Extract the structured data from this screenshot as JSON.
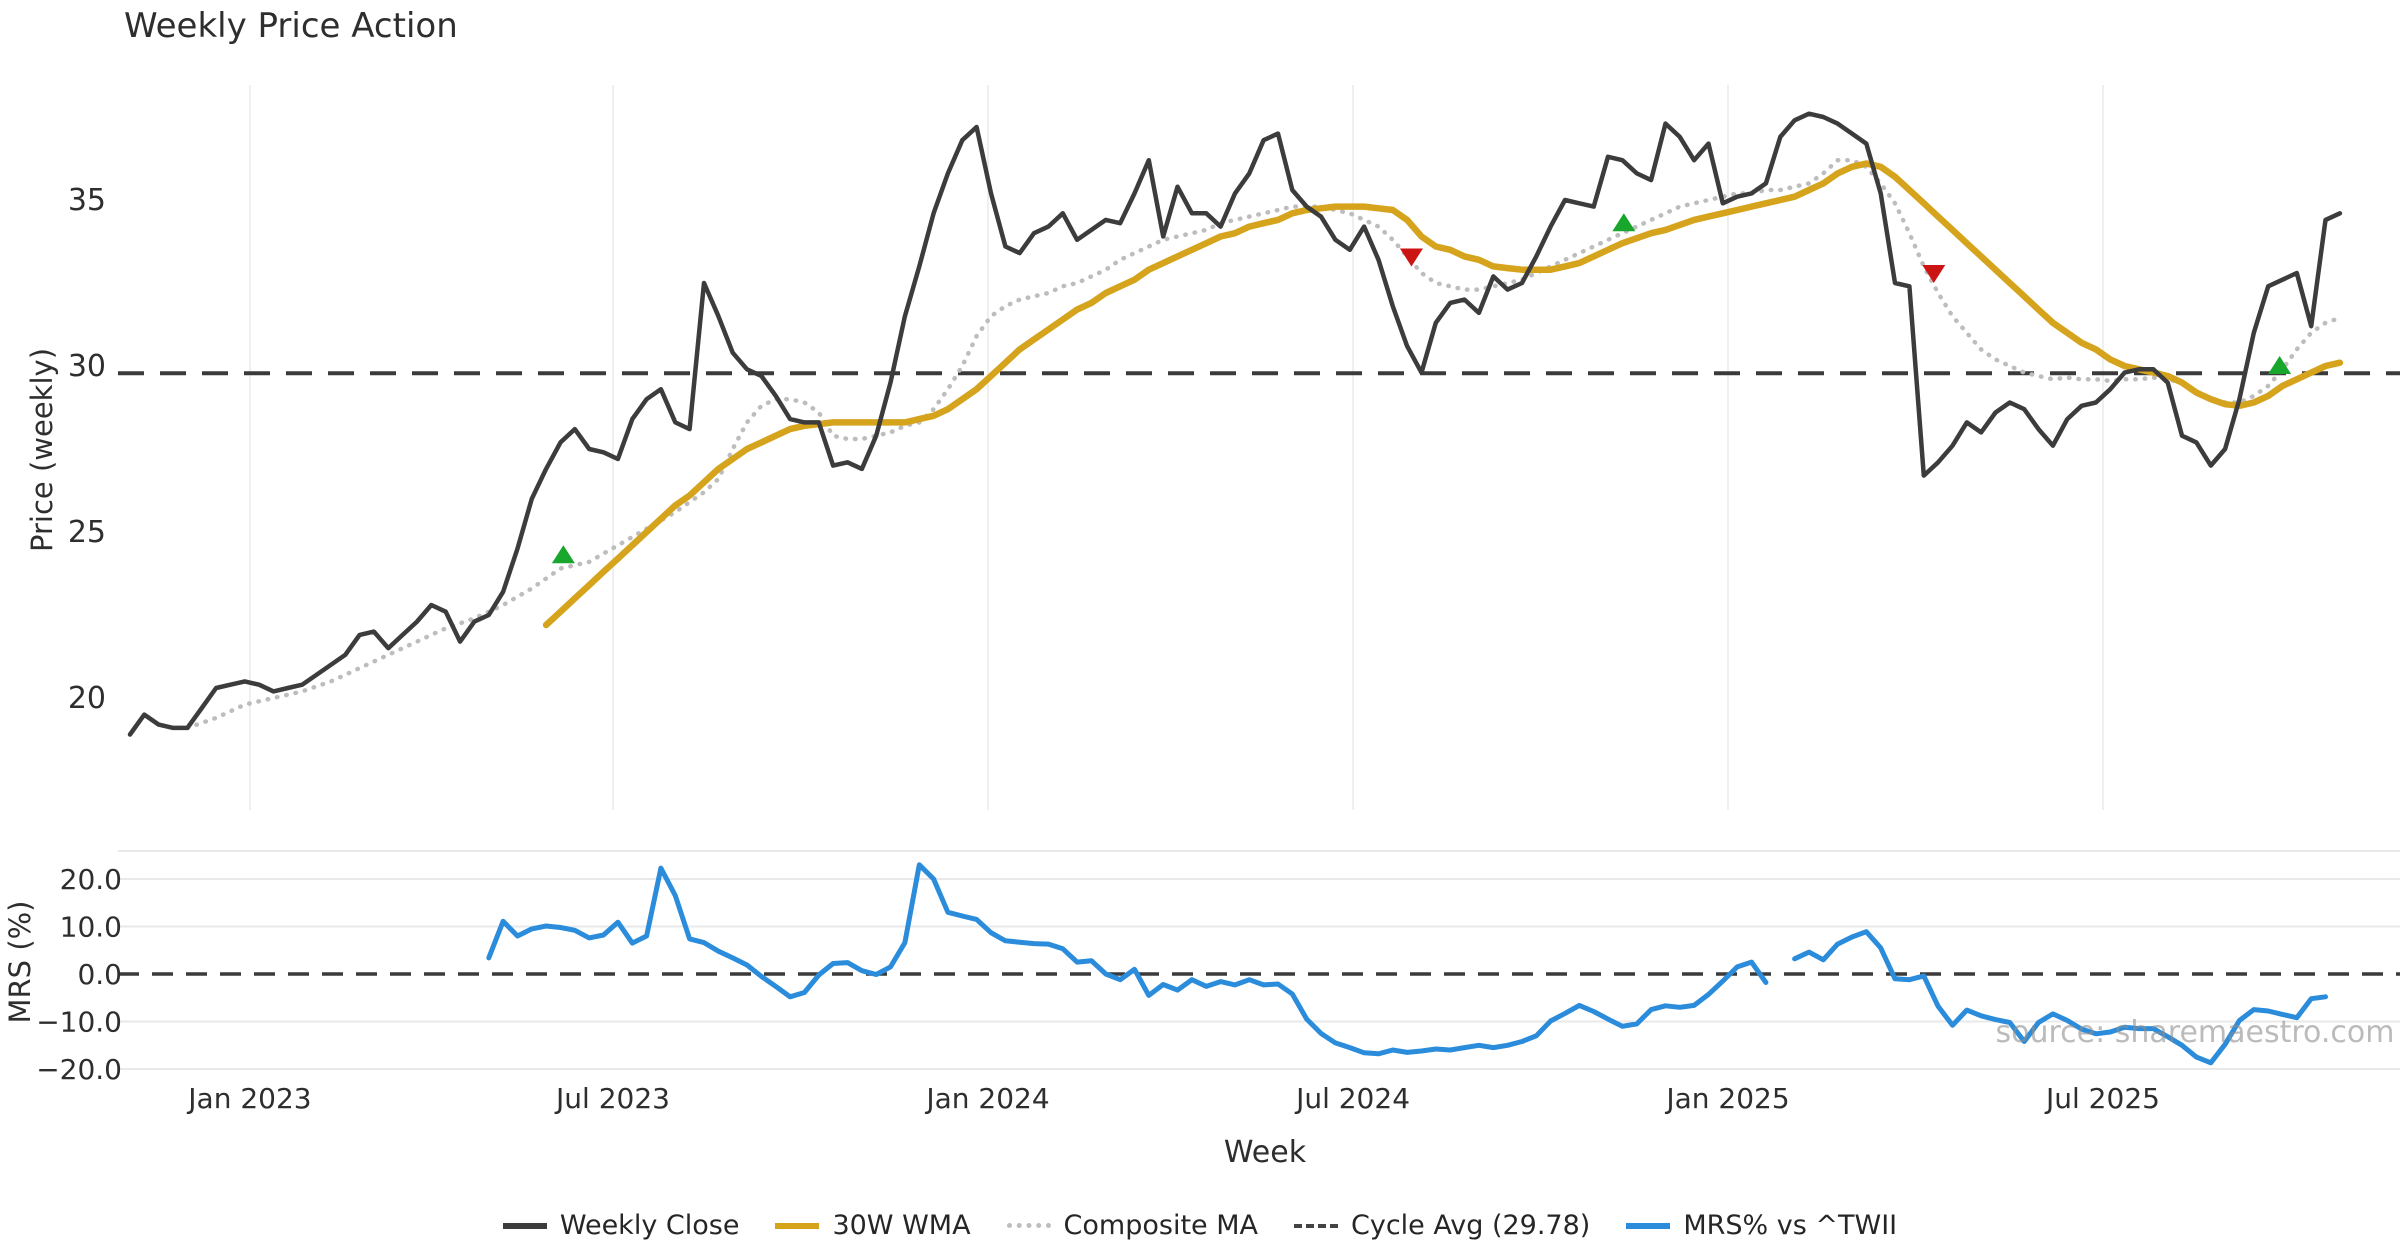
{
  "title": "Weekly Price Action",
  "watermark": "source: sharemaestro.com",
  "legend": [
    {
      "label": "Weekly Close",
      "color": "#3c3c3c",
      "style": "solid"
    },
    {
      "label": "30W WMA",
      "color": "#d5a41c",
      "style": "solid"
    },
    {
      "label": "Composite MA",
      "color": "#bdbdbd",
      "style": "dotted"
    },
    {
      "label": "Cycle Avg (29.78)",
      "color": "#444444",
      "style": "dashed"
    },
    {
      "label": "MRS% vs ^TWII",
      "color": "#2a8cdb",
      "style": "solid"
    }
  ],
  "chart_data": {
    "type": "line",
    "title": "Weekly Price Action",
    "xlabel": "Week",
    "x_unit": "weeks since 2022-11-05",
    "x_ticks": [
      {
        "week": 8.36,
        "label": "Jan 2023"
      },
      {
        "week": 33.66,
        "label": "Jul 2023"
      },
      {
        "week": 59.79,
        "label": "Jan 2024"
      },
      {
        "week": 85.23,
        "label": "Jul 2024"
      },
      {
        "week": 111.36,
        "label": "Jan 2025"
      },
      {
        "week": 137.49,
        "label": "Jul 2025"
      }
    ],
    "panels": [
      {
        "name": "price",
        "ylabel": "Price (weekly)",
        "ylim": [
          16.6,
          38.5
        ],
        "y_ticks": [
          {
            "value": 35,
            "label": "35"
          },
          {
            "value": 30,
            "label": "30"
          },
          {
            "value": 25,
            "label": "25"
          },
          {
            "value": 20,
            "label": "20"
          }
        ],
        "cycle_avg": 29.78,
        "series": [
          {
            "name": "Weekly Close",
            "color": "#3c3c3c",
            "style": "solid",
            "width": 4.5,
            "start_week": 0,
            "values": [
              18.9,
              19.5,
              19.2,
              19.1,
              19.1,
              19.7,
              20.3,
              20.4,
              20.5,
              20.4,
              20.2,
              20.3,
              20.4,
              20.7,
              21.0,
              21.3,
              21.9,
              22.0,
              21.5,
              21.9,
              22.3,
              22.8,
              22.6,
              21.7,
              22.3,
              22.5,
              23.2,
              24.5,
              26.0,
              26.9,
              27.7,
              28.1,
              27.5,
              27.4,
              27.2,
              28.4,
              29.0,
              29.3,
              28.3,
              28.1,
              32.5,
              31.5,
              30.4,
              29.9,
              29.7,
              29.1,
              28.4,
              28.3,
              28.3,
              27.0,
              27.1,
              26.9,
              27.9,
              29.5,
              31.5,
              33.0,
              34.6,
              35.8,
              36.8,
              37.2,
              35.2,
              33.6,
              33.4,
              34.0,
              34.2,
              34.6,
              33.8,
              34.1,
              34.4,
              34.3,
              35.2,
              36.2,
              33.9,
              35.4,
              34.6,
              34.6,
              34.2,
              35.2,
              35.8,
              36.8,
              37.0,
              35.3,
              34.8,
              34.5,
              33.8,
              33.5,
              34.2,
              33.2,
              31.8,
              30.6,
              29.8,
              31.3,
              31.9,
              32.0,
              31.6,
              32.7,
              32.3,
              32.5,
              33.3,
              34.2,
              35.0,
              34.9,
              34.8,
              36.3,
              36.2,
              35.8,
              35.6,
              37.3,
              36.9,
              36.2,
              36.7,
              34.9,
              35.1,
              35.2,
              35.5,
              36.9,
              37.4,
              37.6,
              37.5,
              37.3,
              37.0,
              36.7,
              35.2,
              32.5,
              32.4,
              26.7,
              27.1,
              27.6,
              28.3,
              28.0,
              28.6,
              28.9,
              28.7,
              28.1,
              27.6,
              28.4,
              28.8,
              28.9,
              29.3,
              29.8,
              29.9,
              29.9,
              29.5,
              27.9,
              27.7,
              27.0,
              27.5,
              29.0,
              31.0,
              32.4,
              32.6,
              32.8,
              31.2,
              34.4,
              34.6
            ]
          },
          {
            "name": "30W WMA",
            "color": "#d5a41c",
            "style": "solid",
            "width": 6.5,
            "start_week": 29,
            "values": [
              22.2,
              22.6,
              23.0,
              23.4,
              23.8,
              24.2,
              24.6,
              25.0,
              25.4,
              25.8,
              26.1,
              26.5,
              26.9,
              27.2,
              27.5,
              27.7,
              27.9,
              28.1,
              28.2,
              28.25,
              28.3,
              28.3,
              28.3,
              28.3,
              28.3,
              28.3,
              28.4,
              28.5,
              28.7,
              29.0,
              29.3,
              29.7,
              30.1,
              30.5,
              30.8,
              31.1,
              31.4,
              31.7,
              31.9,
              32.2,
              32.4,
              32.6,
              32.9,
              33.1,
              33.3,
              33.5,
              33.7,
              33.9,
              34.0,
              34.2,
              34.3,
              34.4,
              34.6,
              34.7,
              34.75,
              34.8,
              34.8,
              34.8,
              34.75,
              34.7,
              34.4,
              33.9,
              33.6,
              33.5,
              33.3,
              33.2,
              33.0,
              32.95,
              32.9,
              32.9,
              32.9,
              33.0,
              33.1,
              33.3,
              33.5,
              33.7,
              33.85,
              34.0,
              34.1,
              34.25,
              34.4,
              34.5,
              34.6,
              34.7,
              34.8,
              34.9,
              35.0,
              35.1,
              35.3,
              35.5,
              35.8,
              36.0,
              36.1,
              36.0,
              35.7,
              35.3,
              34.9,
              34.5,
              34.1,
              33.7,
              33.3,
              32.9,
              32.5,
              32.1,
              31.7,
              31.3,
              31.0,
              30.7,
              30.5,
              30.2,
              30.0,
              29.9,
              29.8,
              29.7,
              29.5,
              29.2,
              29.0,
              28.85,
              28.8,
              28.9,
              29.1,
              29.4,
              29.6,
              29.8,
              30.0,
              30.1
            ]
          },
          {
            "name": "Composite MA",
            "color": "#bdbdbd",
            "style": "dotted",
            "width": 4.5,
            "start_week": 4,
            "values": [
              19.1,
              19.25,
              19.4,
              19.6,
              19.8,
              19.9,
              20.0,
              20.1,
              20.2,
              20.35,
              20.5,
              20.7,
              20.9,
              21.1,
              21.3,
              21.5,
              21.7,
              21.9,
              22.1,
              22.25,
              22.4,
              22.6,
              22.8,
              23.05,
              23.3,
              23.6,
              23.9,
              24.0,
              24.1,
              24.35,
              24.6,
              24.85,
              25.1,
              25.35,
              25.6,
              25.9,
              26.2,
              26.6,
              27.5,
              28.3,
              28.8,
              29.0,
              29.0,
              28.9,
              28.6,
              27.9,
              27.8,
              27.8,
              27.9,
              28.0,
              28.2,
              28.3,
              28.7,
              29.3,
              30.0,
              30.9,
              31.5,
              31.8,
              32.0,
              32.1,
              32.2,
              32.4,
              32.5,
              32.7,
              32.9,
              33.2,
              33.4,
              33.6,
              33.8,
              33.9,
              34.0,
              34.1,
              34.3,
              34.4,
              34.5,
              34.6,
              34.7,
              34.8,
              34.8,
              34.8,
              34.7,
              34.6,
              34.4,
              34.2,
              33.8,
              33.3,
              32.8,
              32.5,
              32.4,
              32.3,
              32.3,
              32.4,
              32.5,
              32.6,
              32.8,
              33.0,
              33.2,
              33.4,
              33.6,
              33.8,
              34.0,
              34.2,
              34.4,
              34.6,
              34.8,
              34.9,
              35.0,
              35.1,
              35.2,
              35.2,
              35.3,
              35.3,
              35.4,
              35.5,
              35.8,
              36.2,
              36.2,
              36.0,
              35.5,
              34.9,
              34.0,
              33.0,
              32.2,
              31.5,
              31.0,
              30.5,
              30.2,
              30.0,
              29.8,
              29.7,
              29.6,
              29.65,
              29.6,
              29.6,
              29.55,
              29.6,
              29.6,
              29.65,
              29.6,
              29.5,
              29.2,
              29.0,
              28.9,
              28.9,
              29.1,
              29.4,
              29.9,
              30.5,
              31.0,
              31.3,
              31.45
            ]
          }
        ],
        "markers": {
          "buy": {
            "shape": "triangle-up",
            "color": "#18a62c",
            "points": [
              {
                "week": 30.2,
                "price": 24.3
              },
              {
                "week": 104.1,
                "price": 34.3
              },
              {
                "week": 149.8,
                "price": 30.0
              }
            ]
          },
          "sell": {
            "shape": "triangle-down",
            "color": "#cc1414",
            "points": [
              {
                "week": 89.3,
                "price": 33.3
              },
              {
                "week": 125.7,
                "price": 32.8
              }
            ]
          }
        }
      },
      {
        "name": "mrs",
        "ylabel": "MRS (%)",
        "ylim": [
          -21.3,
          25.9
        ],
        "zero_line": 0.0,
        "y_ticks": [
          {
            "value": 20,
            "label": "20.0"
          },
          {
            "value": 10,
            "label": "10.0"
          },
          {
            "value": 0,
            "label": "0.0"
          },
          {
            "value": -10,
            "label": "−10.0"
          },
          {
            "value": -20,
            "label": "−20.0"
          }
        ],
        "series": [
          {
            "name": "MRS% vs ^TWII",
            "color": "#2a8cdb",
            "style": "solid",
            "width": 5,
            "start_week": 25,
            "values": [
              3.4,
              11.1,
              8.0,
              9.5,
              10.1,
              9.8,
              9.2,
              7.6,
              8.2,
              10.9,
              6.5,
              8.0,
              22.3,
              16.5,
              7.4,
              6.6,
              4.8,
              3.4,
              1.9,
              -0.5,
              -2.6,
              -4.8,
              -3.9,
              -0.2,
              2.2,
              2.4,
              0.7,
              -0.1,
              1.5,
              6.6,
              23.0,
              20.0,
              13.0,
              12.2,
              11.5,
              8.7,
              7.0,
              6.7,
              6.4,
              6.3,
              5.3,
              2.5,
              2.8,
              0.0,
              -1.2,
              1.0,
              -4.5,
              -2.2,
              -3.4,
              -1.2,
              -2.6,
              -1.6,
              -2.3,
              -1.2,
              -2.3,
              -2.1,
              -4.2,
              -9.5,
              -12.5,
              -14.5,
              -15.5,
              -16.6,
              -16.8,
              -16.0,
              -16.5,
              -16.2,
              -15.8,
              -16.0,
              -15.5,
              -15.0,
              -15.5,
              -15.0,
              -14.2,
              -13.0,
              -9.9,
              -8.3,
              -6.6,
              -7.9,
              -9.5,
              -11.0,
              -10.5,
              -7.5,
              -6.7,
              -7.0,
              -6.6,
              -4.3,
              -1.5,
              1.5,
              2.5,
              -1.8,
              null,
              3.2,
              4.6,
              3.0,
              6.3,
              7.8,
              8.9,
              5.5,
              -1.0,
              -1.2,
              -0.4,
              -6.8,
              -10.8,
              -7.6,
              -8.8,
              -9.6,
              -10.2,
              -14.2,
              -10.2,
              -8.4,
              -9.8,
              -11.6,
              -12.6,
              -12.2,
              -11.2,
              -11.5,
              -11.5,
              -13.2,
              -15.0,
              -17.5,
              -18.7,
              -14.8,
              -9.8,
              -7.5,
              -7.8,
              -8.5,
              -9.2,
              -5.2,
              -4.8
            ]
          }
        ]
      }
    ],
    "grid": {
      "price_panel": "vertical-only",
      "mrs_panel": "horizontal-only"
    }
  }
}
